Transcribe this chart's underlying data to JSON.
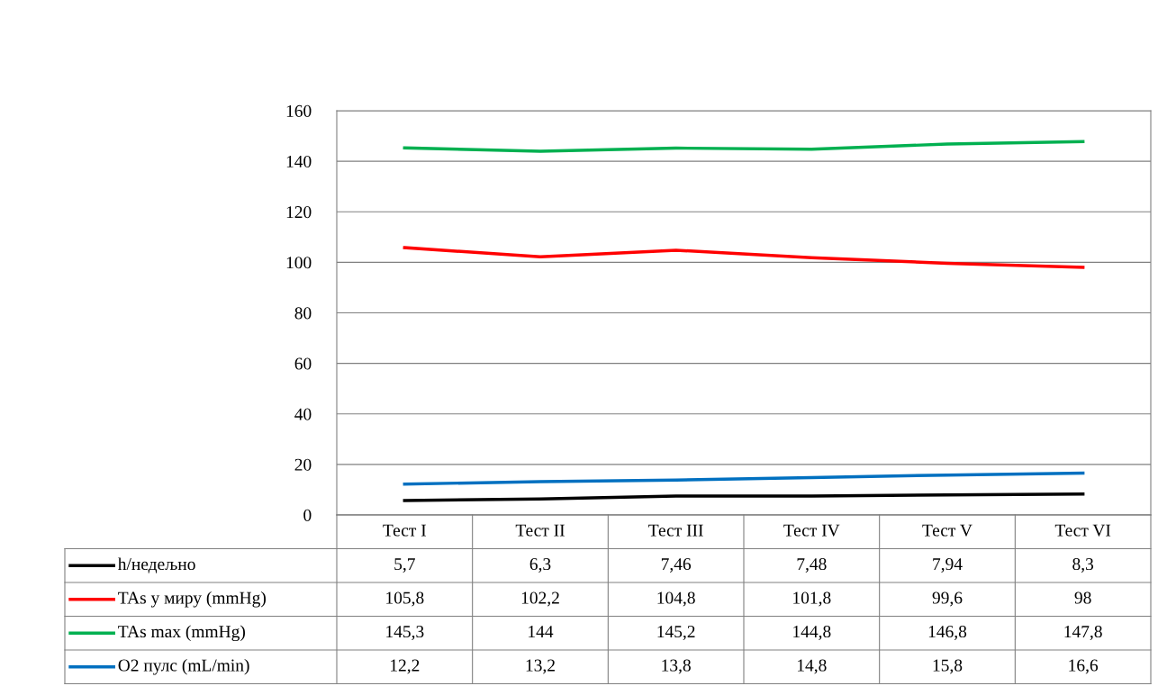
{
  "chart_data": {
    "type": "line",
    "categories": [
      "Тест I",
      "Тест II",
      "Тест III",
      "Тест IV",
      "Тест V",
      "Тест VI"
    ],
    "series": [
      {
        "name": "h/недељно",
        "color": "#000000",
        "values": [
          5.7,
          6.3,
          7.46,
          7.48,
          7.94,
          8.3
        ],
        "value_labels": [
          "5,7",
          "6,3",
          "7,46",
          "7,48",
          "7,94",
          "8,3"
        ]
      },
      {
        "name": "TAs у миру (mmHg)",
        "color": "#ff0000",
        "values": [
          105.8,
          102.2,
          104.8,
          101.8,
          99.6,
          98
        ],
        "value_labels": [
          "105,8",
          "102,2",
          "104,8",
          "101,8",
          "99,6",
          "98"
        ]
      },
      {
        "name": "TAs max (mmHg)",
        "color": "#00b050",
        "values": [
          145.3,
          144,
          145.2,
          144.8,
          146.8,
          147.8
        ],
        "value_labels": [
          "145,3",
          "144",
          "145,2",
          "144,8",
          "146,8",
          "147,8"
        ]
      },
      {
        "name": "O2 пулс (mL/min)",
        "color": "#0070c0",
        "values": [
          12.2,
          13.2,
          13.8,
          14.8,
          15.8,
          16.6
        ],
        "value_labels": [
          "12,2",
          "13,2",
          "13,8",
          "14,8",
          "15,8",
          "16,6"
        ]
      }
    ],
    "ylim": [
      0,
      160
    ],
    "yticks": [
      0,
      20,
      40,
      60,
      80,
      100,
      120,
      140,
      160
    ],
    "grid": "y",
    "legend": "bottom"
  }
}
